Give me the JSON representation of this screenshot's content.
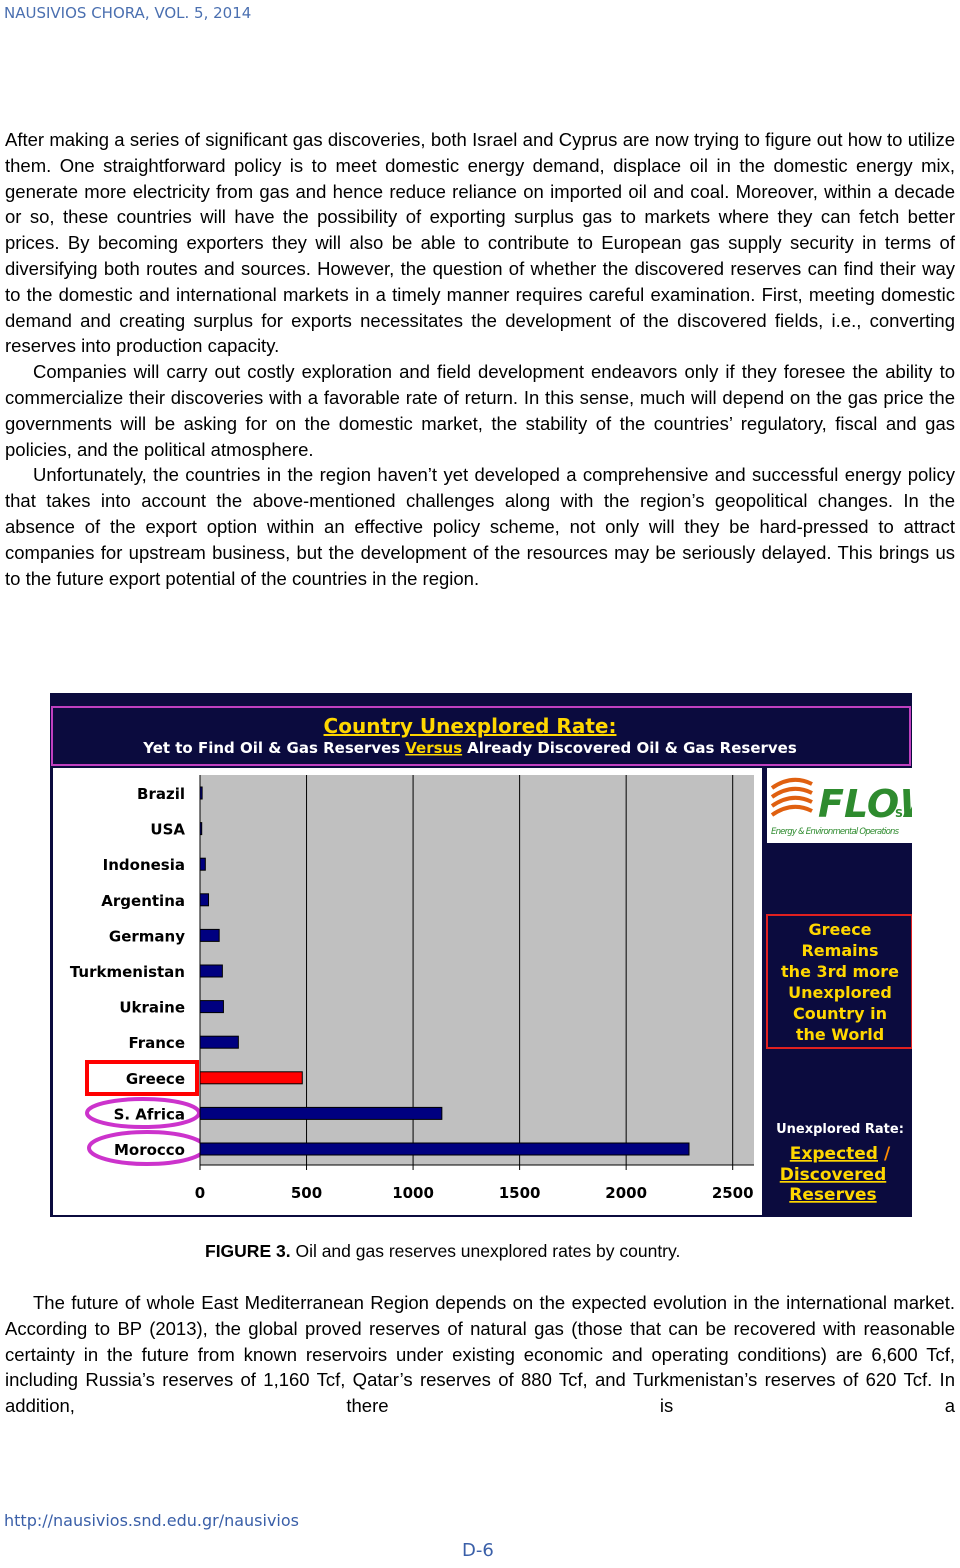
{
  "header": "NAUSIVIOS CHORA, VOL. 5, 2014",
  "paragraphs": [
    "After making a series of significant gas discoveries, both Israel and Cyprus are now trying to figure out how to utilize them. One straightforward policy is to meet domestic energy demand, displace oil in the domestic energy mix, generate more electricity from gas and hence reduce reliance on imported oil and coal. Moreover, within a decade or so, these countries will have the possibility of exporting surplus gas to markets where they can fetch better prices. By becoming exporters they will also be able to contribute to European gas supply security in terms of diversifying both routes and sources. However, the question of whether the discovered reserves can find their way to the domestic and international markets in a timely manner requires careful examination. First, meeting domestic demand and creating surplus for exports necessitates the development of the discovered fields, i.e., converting reserves into production capacity.",
    "Companies will carry out costly exploration and field development endeavors only if they foresee the ability to commercialize their discoveries with a favorable rate of return. In this sense, much will depend on the gas price the governments will be asking for on the domestic market, the stability of the countries’ regulatory, fiscal and gas policies, and the political atmosphere.",
    "Unfortunately, the countries in the region haven’t yet developed a comprehensive and successful energy policy that takes into account the above-mentioned challenges along with the region’s geopolitical changes. In the absence of the export option within an effective policy scheme, not only will they be hard-pressed to attract companies for upstream business, but the development of the resources may be seriously delayed. This brings us to the future export potential of the countries in the region."
  ],
  "chart_data": {
    "type": "hbar",
    "title": "Country Unexplored Rate:",
    "subtitle_parts": [
      "Yet to Find Oil & Gas Reserves",
      "Versus",
      "Already Discovered Oil & Gas Reserves"
    ],
    "categories": [
      "Brazil",
      "USA",
      "Indonesia",
      "Argentina",
      "Germany",
      "Turkmenistan",
      "Ukraine",
      "France",
      "Greece",
      "S. Africa",
      "Morocco"
    ],
    "values": [
      10,
      8,
      25,
      40,
      90,
      105,
      110,
      180,
      480,
      1135,
      2295
    ],
    "colors": [
      "#000080",
      "#000080",
      "#000080",
      "#000080",
      "#000080",
      "#000080",
      "#000080",
      "#000080",
      "#ff0000",
      "#000080",
      "#000080"
    ],
    "xlim": [
      0,
      2600
    ],
    "xticks": [
      0,
      500,
      1000,
      1500,
      2000,
      2500
    ],
    "grid": true,
    "logo": {
      "name": "FLOW",
      "suffix": "SA",
      "tagline": "Energy & Environmental Operations"
    },
    "annotation_lines": [
      "Greece",
      "Remains",
      "the 3rd more",
      "Unexplored",
      "Country in",
      "the World"
    ],
    "legend": {
      "label": "Unexplored Rate:",
      "numerator": "Expected",
      "separator": "/",
      "denominator_lines": [
        "Discovered",
        "Reserves"
      ]
    }
  },
  "caption_label": "FIGURE 3.",
  "caption": "Oil and gas reserves unexplored rates by country.",
  "paragraphs_after": [
    "The future of whole East Mediterranean Region depends on the expected evolution in the international market. According to BP (2013), the global proved reserves of natural gas (those that can be recovered with reasonable certainty in the future from known reservoirs under existing economic and operating conditions) are 6,600 Tcf, including Russia’s reserves of 1,160 Tcf, Qatar’s reserves of 880 Tcf, and Turkmenistan’s reserves of 620 Tcf. In addition, there is a"
  ],
  "footer": {
    "url": "http://nausivios.snd.edu.gr/nausivios",
    "page": "D-6"
  }
}
